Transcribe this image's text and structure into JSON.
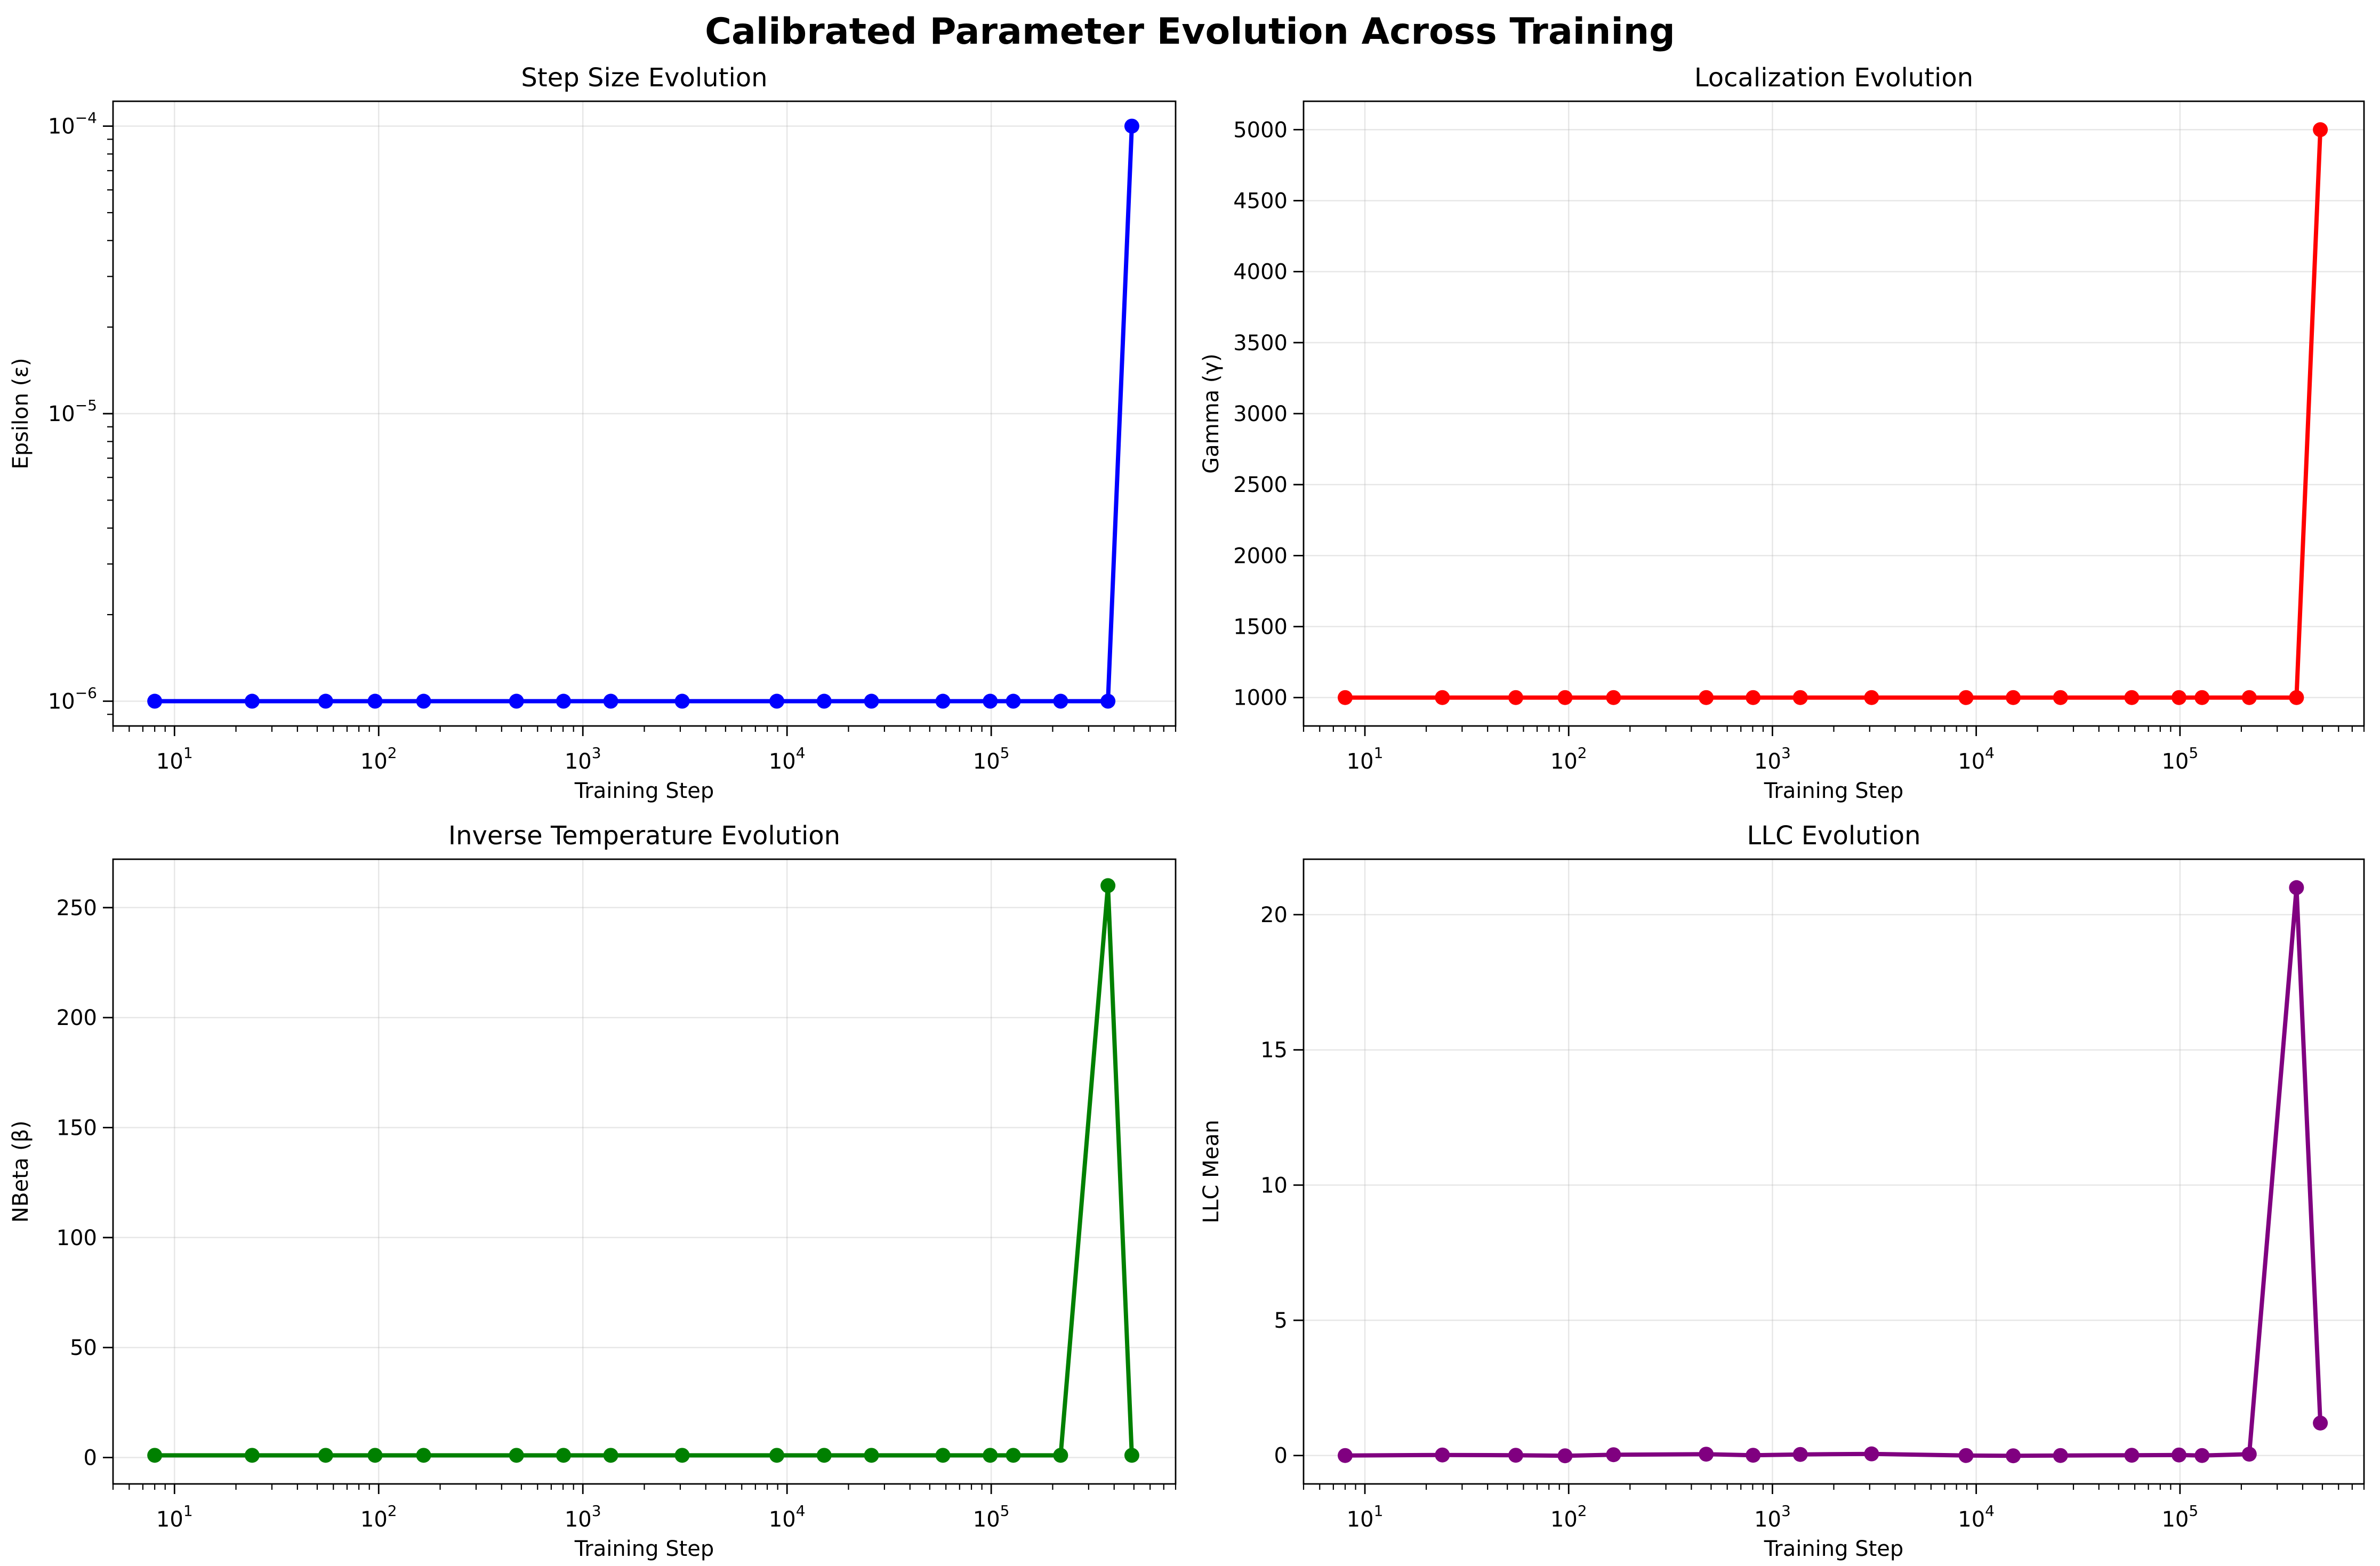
{
  "figure": {
    "title": "Calibrated Parameter Evolution Across Training"
  },
  "chart_data": [
    {
      "type": "line",
      "title": "Step Size Evolution",
      "xlabel": "Training Step",
      "ylabel": "Epsilon (ε)",
      "xscale": "log",
      "yscale": "log",
      "xlim": [
        5,
        800000
      ],
      "ylim": [
        8.2e-07,
        0.000122
      ],
      "grid": true,
      "color": "#0000ff",
      "x": [
        8,
        24,
        55,
        96,
        166,
        473,
        804,
        1370,
        3066,
        8912,
        15196,
        25913,
        58003,
        98874,
        128305,
        218778,
        373057,
        488410
      ],
      "y": [
        1e-06,
        1e-06,
        1e-06,
        1e-06,
        1e-06,
        1e-06,
        1e-06,
        1e-06,
        1e-06,
        1e-06,
        1e-06,
        1e-06,
        1e-06,
        1e-06,
        1e-06,
        1e-06,
        1e-06,
        0.0001
      ],
      "xticks": [
        {
          "v": 10,
          "base": "10",
          "exp": "1"
        },
        {
          "v": 100,
          "base": "10",
          "exp": "2"
        },
        {
          "v": 1000,
          "base": "10",
          "exp": "3"
        },
        {
          "v": 10000,
          "base": "10",
          "exp": "4"
        },
        {
          "v": 100000,
          "base": "10",
          "exp": "5"
        }
      ],
      "yticks": [
        {
          "v": 1e-06,
          "base": "10",
          "exp": "−6"
        },
        {
          "v": 1e-05,
          "base": "10",
          "exp": "−5"
        },
        {
          "v": 0.0001,
          "base": "10",
          "exp": "−4"
        }
      ]
    },
    {
      "type": "line",
      "title": "Localization Evolution",
      "xlabel": "Training Step",
      "ylabel": "Gamma (γ)",
      "xscale": "log",
      "yscale": "linear",
      "xlim": [
        5,
        800000
      ],
      "ylim": [
        800,
        5200
      ],
      "grid": true,
      "color": "#ff0000",
      "x": [
        8,
        24,
        55,
        96,
        166,
        473,
        804,
        1370,
        3066,
        8912,
        15196,
        25913,
        58003,
        98874,
        128305,
        218778,
        373057,
        488410
      ],
      "y": [
        1000,
        1000,
        1000,
        1000,
        1000,
        1000,
        1000,
        1000,
        1000,
        1000,
        1000,
        1000,
        1000,
        1000,
        1000,
        1000,
        1000,
        5000
      ],
      "xticks": [
        {
          "v": 10,
          "base": "10",
          "exp": "1"
        },
        {
          "v": 100,
          "base": "10",
          "exp": "2"
        },
        {
          "v": 1000,
          "base": "10",
          "exp": "3"
        },
        {
          "v": 10000,
          "base": "10",
          "exp": "4"
        },
        {
          "v": 100000,
          "base": "10",
          "exp": "5"
        }
      ],
      "yticks": [
        {
          "v": 1000,
          "label": "1000"
        },
        {
          "v": 1500,
          "label": "1500"
        },
        {
          "v": 2000,
          "label": "2000"
        },
        {
          "v": 2500,
          "label": "2500"
        },
        {
          "v": 3000,
          "label": "3000"
        },
        {
          "v": 3500,
          "label": "3500"
        },
        {
          "v": 4000,
          "label": "4000"
        },
        {
          "v": 4500,
          "label": "4500"
        },
        {
          "v": 5000,
          "label": "5000"
        }
      ]
    },
    {
      "type": "line",
      "title": "Inverse Temperature Evolution",
      "xlabel": "Training Step",
      "ylabel": "NBeta (β)",
      "xscale": "log",
      "yscale": "linear",
      "xlim": [
        5,
        800000
      ],
      "ylim": [
        -12,
        272
      ],
      "grid": true,
      "color": "#008000",
      "x": [
        8,
        24,
        55,
        96,
        166,
        473,
        804,
        1370,
        3066,
        8912,
        15196,
        25913,
        58003,
        98874,
        128305,
        218778,
        373057,
        488410
      ],
      "y": [
        1,
        1,
        1,
        1,
        1,
        1,
        1,
        1,
        1,
        1,
        1,
        1,
        1,
        1,
        1,
        1,
        260,
        1
      ],
      "xticks": [
        {
          "v": 10,
          "base": "10",
          "exp": "1"
        },
        {
          "v": 100,
          "base": "10",
          "exp": "2"
        },
        {
          "v": 1000,
          "base": "10",
          "exp": "3"
        },
        {
          "v": 10000,
          "base": "10",
          "exp": "4"
        },
        {
          "v": 100000,
          "base": "10",
          "exp": "5"
        }
      ],
      "yticks": [
        {
          "v": 0,
          "label": "0"
        },
        {
          "v": 50,
          "label": "50"
        },
        {
          "v": 100,
          "label": "100"
        },
        {
          "v": 150,
          "label": "150"
        },
        {
          "v": 200,
          "label": "200"
        },
        {
          "v": 250,
          "label": "250"
        }
      ]
    },
    {
      "type": "line",
      "title": "LLC Evolution",
      "xlabel": "Training Step",
      "ylabel": "LLC Mean",
      "xscale": "log",
      "yscale": "linear",
      "xlim": [
        5,
        800000
      ],
      "ylim": [
        -1.05,
        22.05
      ],
      "grid": true,
      "color": "#800080",
      "x": [
        8,
        24,
        55,
        96,
        166,
        473,
        804,
        1370,
        3066,
        8912,
        15196,
        25913,
        58003,
        98874,
        128305,
        218778,
        373057,
        488410
      ],
      "y": [
        0.0,
        0.02,
        0.01,
        -0.01,
        0.03,
        0.05,
        0.01,
        0.04,
        0.06,
        0.0,
        -0.01,
        0.0,
        0.01,
        0.02,
        0.0,
        0.05,
        21.0,
        1.2
      ],
      "xticks": [
        {
          "v": 10,
          "base": "10",
          "exp": "1"
        },
        {
          "v": 100,
          "base": "10",
          "exp": "2"
        },
        {
          "v": 1000,
          "base": "10",
          "exp": "3"
        },
        {
          "v": 10000,
          "base": "10",
          "exp": "4"
        },
        {
          "v": 100000,
          "base": "10",
          "exp": "5"
        }
      ],
      "yticks": [
        {
          "v": 0,
          "label": "0"
        },
        {
          "v": 5,
          "label": "5"
        },
        {
          "v": 10,
          "label": "10"
        },
        {
          "v": 15,
          "label": "15"
        },
        {
          "v": 20,
          "label": "20"
        }
      ]
    }
  ]
}
